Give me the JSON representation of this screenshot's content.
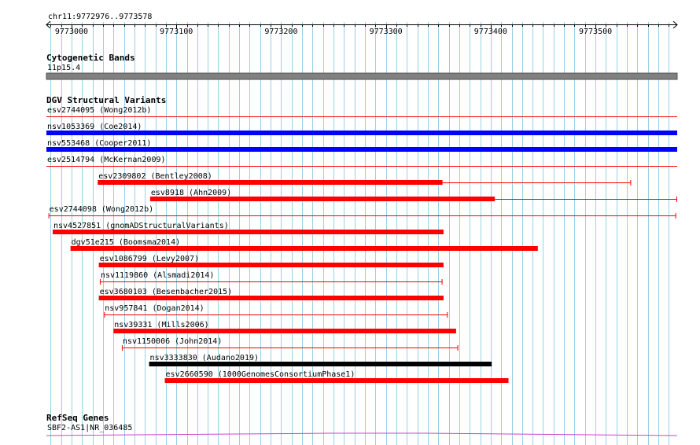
{
  "ruler": {
    "region": "chr11:9772976..9773578",
    "ticks": [
      "9773000",
      "9773100",
      "9773200",
      "9773300",
      "9773400",
      "9773500"
    ]
  },
  "colors": {
    "grid": "#9ad0e6",
    "ruler": "#000000",
    "band": "#808080",
    "variant_blue": "#0000ff",
    "variant_red": "#ff0000",
    "variant_black": "#000000",
    "refseq": "#cc44cc"
  },
  "tracks": {
    "cytoband": {
      "title": "Cytogenetic Bands",
      "band_label": "11p15.4"
    },
    "dgv": {
      "title": "DGV Structural Variants",
      "features": [
        {
          "label": "esv2744095 (Wong2012b)",
          "start": 9772976,
          "end": 9773578,
          "style": "line",
          "color": "red"
        },
        {
          "label": "nsv1053369 (Coe2014)",
          "start": 9772976,
          "end": 9773578,
          "style": "bar",
          "color": "blue"
        },
        {
          "label": "nsv553468 (Cooper2011)",
          "start": 9772976,
          "end": 9773578,
          "style": "bar",
          "color": "blue"
        },
        {
          "label": "esv2514794 (McKernan2009)",
          "start": 9772976,
          "end": 9773578,
          "style": "line",
          "color": "red"
        },
        {
          "label": "esv2309802 (Bentley2008)",
          "start": 9773025,
          "end": 9773534,
          "thick_end": 9773354,
          "style": "split",
          "color": "red"
        },
        {
          "label": "esv8918 (Ahn2009)",
          "start": 9773075,
          "end": 9773578,
          "thick_end": 9773404,
          "style": "split",
          "color": "red"
        },
        {
          "label": "esv2744098 (Wong2012b)",
          "start": 9772978,
          "end": 9773577,
          "style": "line-end",
          "color": "red"
        },
        {
          "label": "nsv4527851 (gnomADStructuralVariants)",
          "start": 9772982,
          "end": 9773355,
          "style": "bar",
          "color": "red"
        },
        {
          "label": "dgv51e215 (Boomsma2014)",
          "start": 9772999,
          "end": 9773445,
          "style": "bar",
          "color": "red"
        },
        {
          "label": "esv1086799 (Levy2007)",
          "start": 9773026,
          "end": 9773355,
          "style": "bar",
          "color": "red"
        },
        {
          "label": "nsv1119860 (Alsmadi2014)",
          "start": 9773027,
          "end": 9773354,
          "style": "line-end",
          "color": "red"
        },
        {
          "label": "esv3680103 (Besenbacher2015)",
          "start": 9773026,
          "end": 9773355,
          "style": "bar",
          "color": "red"
        },
        {
          "label": "nsv957841 (Dogan2014)",
          "start": 9773031,
          "end": 9773359,
          "style": "line-end",
          "color": "red"
        },
        {
          "label": "nsv39331 (Mills2006)",
          "start": 9773040,
          "end": 9773367,
          "style": "bar",
          "color": "red"
        },
        {
          "label": "nsv1150006 (John2014)",
          "start": 9773048,
          "end": 9773369,
          "style": "line-end",
          "color": "red"
        },
        {
          "label": "nsv3333830 (Audano2019)",
          "start": 9773074,
          "end": 9773401,
          "style": "bar",
          "color": "black"
        },
        {
          "label": "esv2660590 (1000GenomesConsortiumPhase1)",
          "start": 9773089,
          "end": 9773417,
          "style": "bar",
          "color": "red"
        }
      ]
    },
    "refseq": {
      "title": "RefSeq Genes",
      "gene_label": "SBF2-AS1|NR_036485"
    }
  }
}
